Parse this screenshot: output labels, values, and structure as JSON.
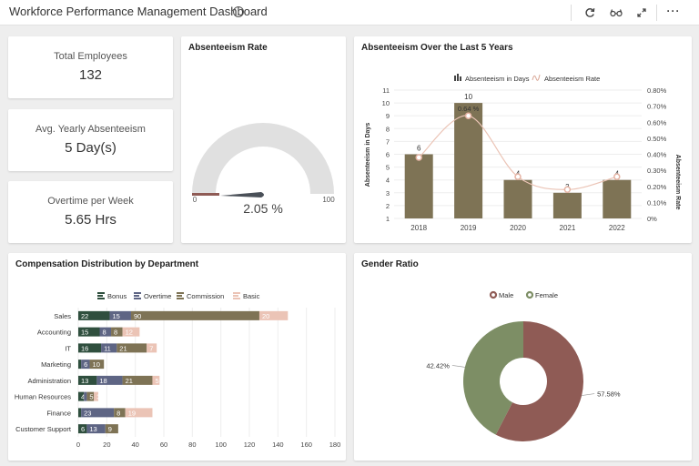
{
  "header": {
    "title": "Workforce Performance Management Dashboard",
    "info_icon": "info-icon",
    "toolbar_icons": [
      "refresh-icon",
      "glasses-icon",
      "expand-icon",
      "more-icon"
    ]
  },
  "kpis": [
    {
      "label": "Total Employees",
      "value": "132"
    },
    {
      "label": "Avg. Yearly Absenteeism",
      "value": "5 Day(s)"
    },
    {
      "label": "Overtime per Week",
      "value": "5.65 Hrs"
    }
  ],
  "gauge": {
    "title": "Absenteeism Rate",
    "value_label": "2.05 %",
    "value": 2.05,
    "min": "0",
    "max": "100",
    "track_color": "#e0e0e0",
    "fill_color": "#8f5b55",
    "needle_color": "#4a5058"
  },
  "absenteeism": {
    "title": "Absenteeism Over the Last 5 Years",
    "ylabel_left": "Absenteeism in Days",
    "ylabel_right": "Absenteeism Rate",
    "bar_color": "#7e7355",
    "line_color": "#ebc4b6",
    "chart_data": {
      "type": "bar",
      "categories": [
        "2018",
        "2019",
        "2020",
        "2021",
        "2022"
      ],
      "series": [
        {
          "name": "Absenteeism in Days",
          "type": "bar",
          "values": [
            6,
            10,
            4,
            3,
            4
          ],
          "labels": [
            "6",
            "10",
            "4",
            "3",
            "4"
          ]
        },
        {
          "name": "Absenteeism Rate",
          "type": "spline",
          "values": [
            0.38,
            0.64,
            0.26,
            0.18,
            0.26
          ],
          "labels": [
            "",
            "0.64 %",
            "",
            "",
            ""
          ]
        }
      ],
      "y_left": {
        "min": 1,
        "max": 11,
        "ticks": [
          "1",
          "2",
          "3",
          "4",
          "5",
          "6",
          "7",
          "8",
          "9",
          "10",
          "11"
        ]
      },
      "y_right": {
        "min": 0,
        "max": 0.8,
        "ticks": [
          "0%",
          "0.10%",
          "0.20%",
          "0.30%",
          "0.40%",
          "0.50%",
          "0.60%",
          "0.70%",
          "0.80%"
        ]
      },
      "legend_position": "top"
    }
  },
  "compensation": {
    "title": "Compensation Distribution by Department",
    "chart_data": {
      "type": "bar",
      "orientation": "horizontal",
      "stacked": true,
      "categories": [
        "Sales",
        "Accounting",
        "IT",
        "Marketing",
        "Administration",
        "Human Resources",
        "Finance",
        "Customer Support"
      ],
      "series": [
        {
          "name": "Bonus",
          "color": "#2f4f3e",
          "values": [
            22,
            15,
            16,
            2,
            13,
            4,
            2,
            6
          ],
          "labels": [
            "22",
            "15",
            "16",
            "",
            "13",
            "4",
            "",
            "6"
          ]
        },
        {
          "name": "Overtime",
          "color": "#5e6584",
          "values": [
            15,
            8,
            11,
            6,
            18,
            2,
            23,
            13
          ],
          "labels": [
            "15",
            "8",
            "11",
            "6",
            "18",
            "",
            "23",
            "13"
          ]
        },
        {
          "name": "Commission",
          "color": "#7e7355",
          "values": [
            90,
            8,
            21,
            10,
            21,
            5,
            8,
            9
          ],
          "labels": [
            "90",
            "8",
            "21",
            "10",
            "21",
            "5",
            "8",
            "9"
          ]
        },
        {
          "name": "Basic",
          "color": "#ebc4b6",
          "values": [
            20,
            12,
            7,
            0,
            5,
            3,
            19,
            0
          ],
          "labels": [
            "20",
            "12",
            "7",
            "",
            "5",
            "3",
            "19",
            ""
          ]
        }
      ],
      "x_ticks": [
        "0",
        "20",
        "40",
        "60",
        "80",
        "100",
        "120",
        "140",
        "160",
        "180"
      ],
      "xlim": [
        0,
        180
      ],
      "legend_position": "top"
    }
  },
  "gender": {
    "title": "Gender Ratio",
    "chart_data": {
      "type": "pie",
      "donut": true,
      "slices": [
        {
          "name": "Male",
          "value": 57.58,
          "label": "57.58%",
          "color": "#8f5b55"
        },
        {
          "name": "Female",
          "value": 42.42,
          "label": "42.42%",
          "color": "#7d8e65"
        }
      ],
      "legend_position": "top"
    }
  }
}
